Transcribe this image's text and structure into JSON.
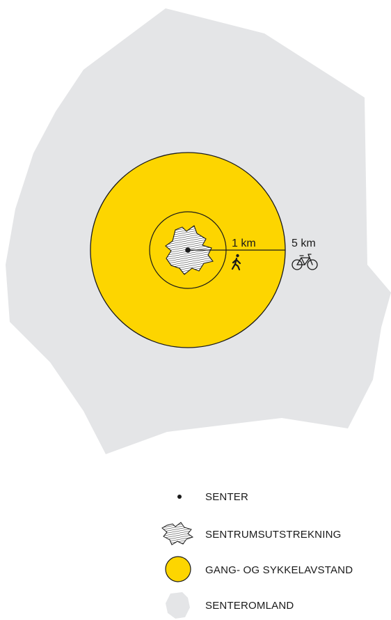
{
  "distances": {
    "inner_label": "1 km",
    "outer_label": "5 km"
  },
  "icons": {
    "walking": "pedestrian-icon",
    "cycling": "bicycle-icon"
  },
  "legend": {
    "items": [
      {
        "key": "center",
        "label": "SENTER"
      },
      {
        "key": "extent",
        "label": "SENTRUMSUTSTREKNING"
      },
      {
        "key": "distance",
        "label": "GANG- OG SYKKELAVSTAND"
      },
      {
        "key": "hinterland",
        "label": "SENTEROMLAND"
      }
    ]
  },
  "colors": {
    "hinterland_fill": "#e4e5e7",
    "zone_fill": "#fdd500",
    "outline": "#1a1a1a",
    "background": "#ffffff"
  }
}
